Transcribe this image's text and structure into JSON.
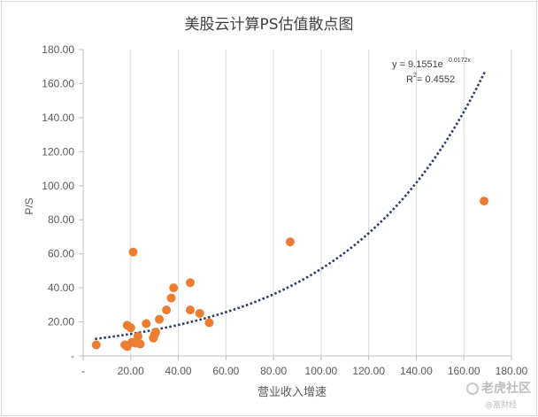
{
  "chart_data": {
    "type": "scatter",
    "title": "美股云计算PS估值散点图",
    "xlabel": "营业收入增速",
    "ylabel": "P/S",
    "xlim": [
      0,
      180
    ],
    "ylim": [
      0,
      180
    ],
    "x_ticks": [
      0,
      20,
      40,
      60,
      80,
      100,
      120,
      140,
      160,
      180
    ],
    "y_ticks": [
      0,
      20,
      40,
      60,
      80,
      100,
      120,
      140,
      160,
      180
    ],
    "x_tick_labels": [
      "-",
      "20.00",
      "40.00",
      "60.00",
      "80.00",
      "100.00",
      "120.00",
      "140.00",
      "160.00",
      "180.00"
    ],
    "y_tick_labels": [
      "-",
      "20.00",
      "40.00",
      "60.00",
      "80.00",
      "100.00",
      "120.00",
      "140.00",
      "160.00",
      "180.00"
    ],
    "grid": "vertical",
    "series": [
      {
        "marker_color": "#ed7d31",
        "points": [
          [
            5.5,
            6.5
          ],
          [
            17.5,
            6.5
          ],
          [
            18.5,
            5.5
          ],
          [
            18.5,
            18
          ],
          [
            20,
            16.5
          ],
          [
            20.5,
            8
          ],
          [
            21,
            61
          ],
          [
            22,
            7.5
          ],
          [
            23,
            11.5
          ],
          [
            24,
            7
          ],
          [
            26.5,
            19
          ],
          [
            29.5,
            10.5
          ],
          [
            30,
            12.5
          ],
          [
            30.5,
            14
          ],
          [
            32,
            21.5
          ],
          [
            35,
            27
          ],
          [
            37,
            34
          ],
          [
            38,
            40
          ],
          [
            45,
            43
          ],
          [
            45,
            27
          ],
          [
            49,
            25
          ],
          [
            53,
            19.5
          ],
          [
            87,
            67
          ],
          [
            168.5,
            91
          ]
        ]
      }
    ],
    "trendline": {
      "type": "exponential",
      "a": 9.1551,
      "b": 0.0172,
      "x_range": [
        5,
        169
      ],
      "color": "#2e3a6e",
      "style": "dotted",
      "equation_label": "y = 9.1551e",
      "equation_exponent": "0.0172x",
      "r2_label": "R",
      "r2_exponent": "2",
      "r2_value": " = 0.4552"
    }
  },
  "watermark": {
    "main": "老虎社区",
    "sub": "@富财经"
  }
}
